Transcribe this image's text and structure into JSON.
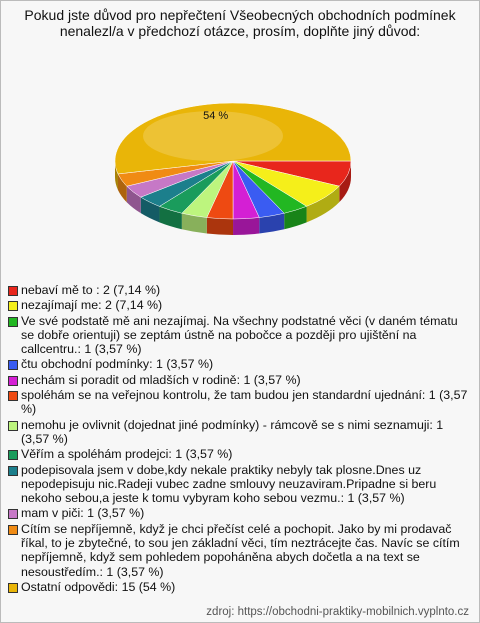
{
  "chart_data": {
    "type": "pie",
    "title": "Pokud jste důvod pro nepřečtení Všeobecných obchodních podmínek nenalezl/a v předchozí otázce, prosím, doplňte jiný důvod:",
    "categories": [
      "nebaví mě to : 2 (7,14 %)",
      "nezajímají me: 2 (7,14 %)",
      "Ve své podstatě mě ani nezajímaj. Na všechny podstatné věci (v daném tématu se dobře orientuji) se zeptám ústně na pobočce a později pro ujištění na callcentru.: 1 (3,57 %)",
      "čtu obchodní podmínky: 1 (3,57 %)",
      "nechám si poradit od mladších v rodině: 1 (3,57 %)",
      "spoléhám se na veřejnou kontrolu, že tam budou jen standardní ujednání: 1 (3,57 %)",
      "nemohu je ovlivnit (dojednat jiné podmínky) - rámcově se s nimi seznamuji: 1 (3,57 %)",
      "Věřím a spoléhám prodejci: 1 (3,57 %)",
      "podepisovala jsem v dobe,kdy nekale praktiky nebyly tak plosne.Dnes uz nepodepisuju nic.Radeji vubec zadne smlouvy neuzaviram.Pripadne si beru nekoho sebou,a jeste k tomu vybyram koho sebou vezmu.: 1 (3,57 %)",
      "mam v piči: 1 (3,57 %)",
      "Cítím se nepříjemně, když je chci přečíst celé a pochopit. Jako by mi prodavač říkal, to je zbytečné, to sou jen základní věci, tím neztrácejte čas. Navíc se cítím nepříjemně, když sem pohledem popoháněna abych dočetla a na text se nesoustředím.: 1 (3,57 %)",
      "Ostatní odpovědi: 15 (54 %)"
    ],
    "values": [
      7.14,
      7.14,
      3.57,
      3.57,
      3.57,
      3.57,
      3.57,
      3.57,
      3.57,
      3.57,
      3.57,
      53.57
    ],
    "value_labels": [
      null,
      null,
      null,
      null,
      null,
      null,
      null,
      null,
      null,
      null,
      null,
      "54 %"
    ],
    "colors": [
      "#e8261c",
      "#f5ef1a",
      "#22b722",
      "#3a5cf2",
      "#d41fd4",
      "#ee4a12",
      "#bdf57e",
      "#1a9c5c",
      "#1c7f8c",
      "#c678c6",
      "#f08b14",
      "#e9b508"
    ],
    "source": "zdroj: https://obchodni-praktiky-mobilnich.vyplnto.cz"
  }
}
